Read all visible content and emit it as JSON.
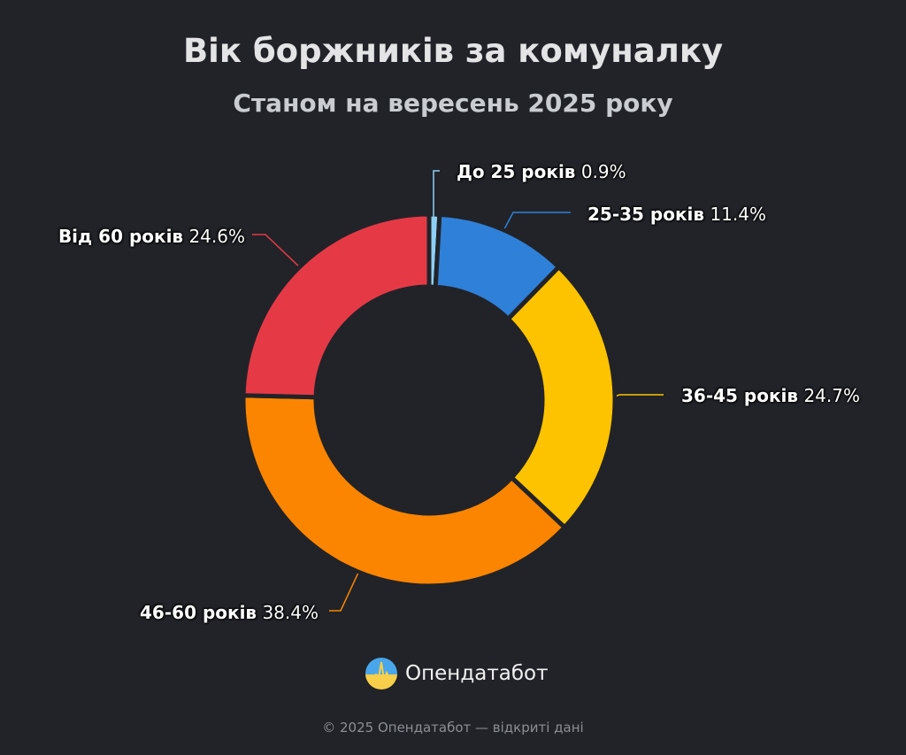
{
  "chart_data": {
    "type": "pie",
    "variant": "donut",
    "title": "Вік боржників за комуналку",
    "subtitle": "Станом на вересень 2025 року",
    "slices": [
      {
        "label": "До 25 років",
        "value": 0.9,
        "value_text": "0.9%",
        "color": "#8ecff5"
      },
      {
        "label": "25-35 років",
        "value": 11.4,
        "value_text": "11.4%",
        "color": "#2f80d8"
      },
      {
        "label": "36-45 років",
        "value": 24.7,
        "value_text": "24.7%",
        "color": "#fdc300"
      },
      {
        "label": "46-60 років",
        "value": 38.4,
        "value_text": "38.4%",
        "color": "#fb8500"
      },
      {
        "label": "Від 60 років",
        "value": 24.6,
        "value_text": "24.6%",
        "color": "#e63946"
      }
    ],
    "start": "top",
    "direction": "clockwise"
  },
  "brand": {
    "name": "Опендатабот",
    "logo_icon": "opendatabot-logo-icon"
  },
  "footer": "© 2025 Опендатабот — відкриті дані"
}
